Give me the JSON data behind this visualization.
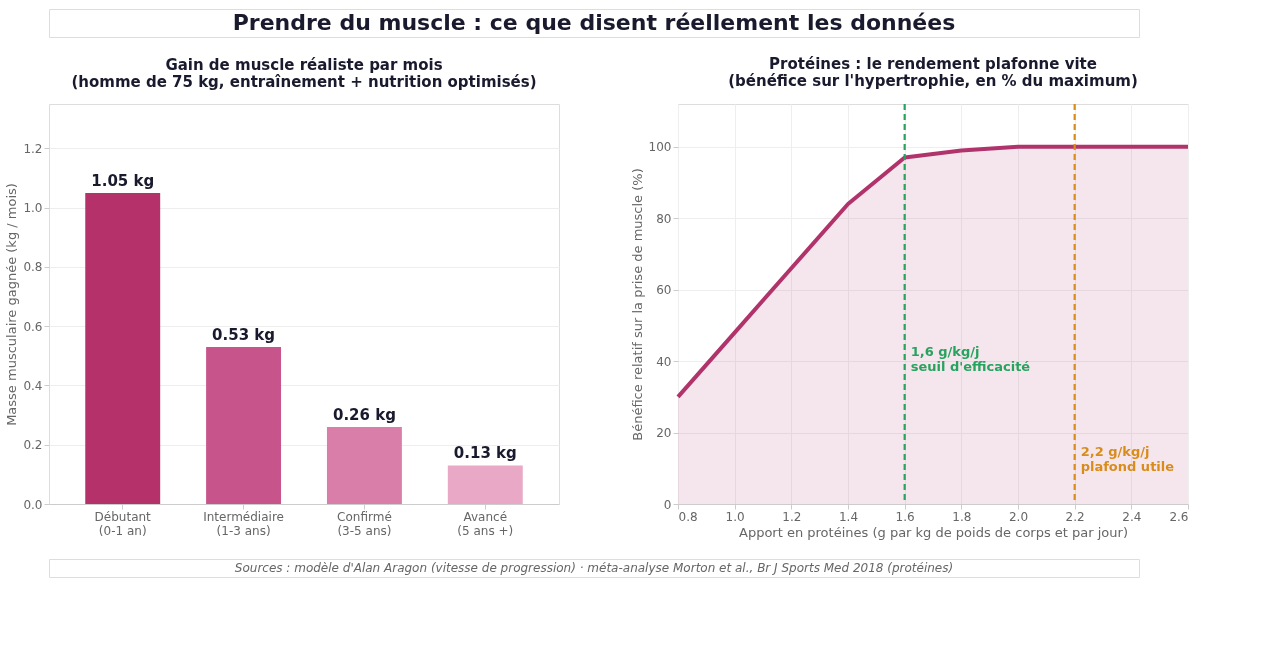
{
  "chart_data": [
    {
      "type": "bar",
      "title": [
        "Gain de muscle réaliste par mois",
        "(homme de 75 kg, entraînement + nutrition optimisés)"
      ],
      "ylabel": "Masse musculaire gagnée (kg / mois)",
      "categories": [
        "Débutant\n(0-1 an)",
        "Intermédiaire\n(1-3 ans)",
        "Confirmé\n(3-5 ans)",
        "Avancé\n(5 ans +)"
      ],
      "values": [
        1.05,
        0.53,
        0.26,
        0.13
      ],
      "colors": [
        "#b5316a",
        "#c7548a",
        "#d97ea9",
        "#e8a8c6"
      ],
      "value_labels": [
        "1.05 kg",
        "0.53 kg",
        "0.26 kg",
        "0.13 kg"
      ],
      "ylim": [
        0,
        1.35
      ],
      "yticks": [
        {
          "value": 0,
          "label": "0.0"
        },
        {
          "value": 0.2,
          "label": "0.2"
        },
        {
          "value": 0.4,
          "label": "0.4"
        },
        {
          "value": 0.6,
          "label": "0.6"
        },
        {
          "value": 0.8,
          "label": "0.8"
        },
        {
          "value": 1,
          "label": "1.0"
        },
        {
          "value": 1.2,
          "label": "1.2"
        }
      ],
      "grid": "y",
      "annotations": [
        "Prendre du muscle : ce que disent réellement les données"
      ]
    },
    {
      "type": "area",
      "title": [
        "Protéines : le rendement plafonne vite",
        "(bénéfice sur l'hypertrophie, en % du maximum)"
      ],
      "xlabel": "Apport en protéines (g par kg de poids de corps et par jour)",
      "ylabel": "Bénéfice relatif sur la prise de muscle (%)",
      "x": [
        0.8,
        1.0,
        1.2,
        1.4,
        1.6,
        1.8,
        2.0,
        2.2,
        2.4,
        2.6
      ],
      "series": [
        {
          "color": "#b0336b",
          "values": [
            30,
            48,
            66,
            84,
            97,
            99,
            100,
            100,
            100,
            100
          ]
        }
      ],
      "xlim": [
        0.8,
        2.6
      ],
      "xticks": [
        0.8,
        {
          "value": 1,
          "label": "1.0"
        },
        1.2,
        1.4,
        1.6,
        1.8,
        {
          "value": 2,
          "label": "2.0"
        },
        2.2,
        2.4,
        2.6
      ],
      "ylim": [
        0,
        112
      ],
      "yticks": [
        0,
        20,
        40,
        60,
        80,
        100
      ],
      "grid": true,
      "ref_lines": [
        {
          "axis": "x",
          "value": 1.6,
          "label": "1,6 g/kg/j\nseuil d'efficacité",
          "color": "#27a35f",
          "line_style": "dashed"
        },
        {
          "axis": "x",
          "value": 2.2,
          "label": "2,2 g/kg/j\nplafond utile",
          "color": "#d98c1a",
          "line_style": "dashed"
        }
      ],
      "annotations": [
        "Sources : modèle d'Alan Aragon (vitesse de progression) · méta-analyse Morton et al., Br J Sports Med 2018 (protéines)"
      ]
    }
  ]
}
